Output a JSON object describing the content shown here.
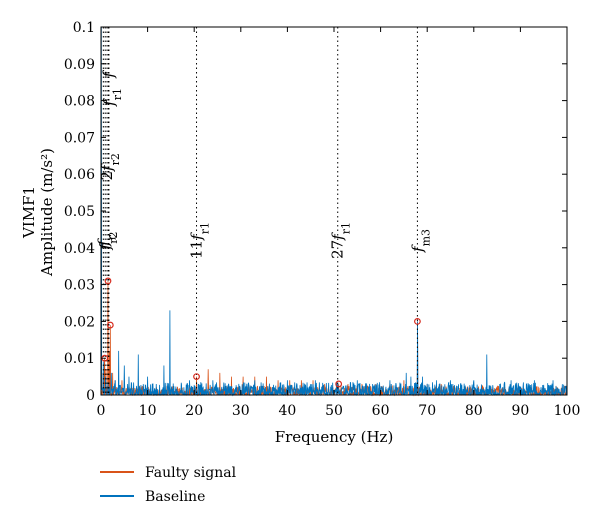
{
  "chart_data": {
    "type": "line",
    "title": "",
    "xlabel": "Frequency (Hz)",
    "ylabel_lines": [
      "VIMF1",
      "Amplitude (m/s²)"
    ],
    "xlim": [
      0,
      100
    ],
    "ylim": [
      0,
      0.1
    ],
    "xticks": [
      0,
      10,
      20,
      30,
      40,
      50,
      60,
      70,
      80,
      90,
      100
    ],
    "xtick_labels": [
      "0",
      "10",
      "20",
      "30",
      "40",
      "50",
      "60",
      "70",
      "80",
      "90",
      "100"
    ],
    "yticks": [
      0,
      0.01,
      0.02,
      0.03,
      0.04,
      0.05,
      0.06,
      0.07,
      0.08,
      0.09,
      0.1
    ],
    "ytick_labels": [
      "0",
      "0.01",
      "0.02",
      "0.03",
      "0.04",
      "0.05",
      "0.06",
      "0.07",
      "0.08",
      "0.09",
      "0.1"
    ],
    "grid": false,
    "legend_position": "below",
    "colors": {
      "faulty": "#d95319",
      "baseline": "#0072bd",
      "marker": "#d62b1f"
    },
    "series": [
      {
        "name": "Faulty signal",
        "key": "faulty",
        "peaks": [
          {
            "x": 0.4,
            "y": 0.006
          },
          {
            "x": 0.7,
            "y": 0.008
          },
          {
            "x": 0.8,
            "y": 0.01
          },
          {
            "x": 1.1,
            "y": 0.007
          },
          {
            "x": 1.5,
            "y": 0.031
          },
          {
            "x": 1.8,
            "y": 0.012
          },
          {
            "x": 2.0,
            "y": 0.019
          },
          {
            "x": 2.5,
            "y": 0.006
          },
          {
            "x": 3.0,
            "y": 0.004
          },
          {
            "x": 4.5,
            "y": 0.004
          },
          {
            "x": 20.5,
            "y": 0.005
          },
          {
            "x": 23.0,
            "y": 0.007
          },
          {
            "x": 25.5,
            "y": 0.006
          },
          {
            "x": 28.0,
            "y": 0.005
          },
          {
            "x": 30.5,
            "y": 0.005
          },
          {
            "x": 33.0,
            "y": 0.005
          },
          {
            "x": 35.5,
            "y": 0.005
          },
          {
            "x": 38.0,
            "y": 0.004
          },
          {
            "x": 40.5,
            "y": 0.004
          },
          {
            "x": 43.0,
            "y": 0.004
          },
          {
            "x": 45.5,
            "y": 0.004
          },
          {
            "x": 48.0,
            "y": 0.003
          },
          {
            "x": 51.0,
            "y": 0.003
          },
          {
            "x": 53.0,
            "y": 0.003
          },
          {
            "x": 56.0,
            "y": 0.003
          },
          {
            "x": 59.0,
            "y": 0.003
          },
          {
            "x": 62.0,
            "y": 0.003
          },
          {
            "x": 65.0,
            "y": 0.004
          },
          {
            "x": 67.9,
            "y": 0.02
          },
          {
            "x": 70.0,
            "y": 0.003
          },
          {
            "x": 73.0,
            "y": 0.003
          },
          {
            "x": 76.0,
            "y": 0.002
          },
          {
            "x": 79.0,
            "y": 0.002
          },
          {
            "x": 85.0,
            "y": 0.002
          },
          {
            "x": 90.0,
            "y": 0.002
          },
          {
            "x": 95.0,
            "y": 0.002
          },
          {
            "x": 99.0,
            "y": 0.002
          }
        ],
        "noise_level": 0.0025
      },
      {
        "name": "Baseline",
        "key": "baseline",
        "peaks": [
          {
            "x": 0.1,
            "y": 0.1
          },
          {
            "x": 0.5,
            "y": 0.009
          },
          {
            "x": 1.0,
            "y": 0.005
          },
          {
            "x": 2.2,
            "y": 0.006
          },
          {
            "x": 3.1,
            "y": 0.004
          },
          {
            "x": 3.8,
            "y": 0.012
          },
          {
            "x": 5.0,
            "y": 0.008
          },
          {
            "x": 6.0,
            "y": 0.005
          },
          {
            "x": 8.0,
            "y": 0.011
          },
          {
            "x": 10.0,
            "y": 0.005
          },
          {
            "x": 13.5,
            "y": 0.008
          },
          {
            "x": 14.8,
            "y": 0.023
          },
          {
            "x": 19.0,
            "y": 0.004
          },
          {
            "x": 24.0,
            "y": 0.004
          },
          {
            "x": 33.0,
            "y": 0.004
          },
          {
            "x": 40.0,
            "y": 0.004
          },
          {
            "x": 46.0,
            "y": 0.004
          },
          {
            "x": 55.0,
            "y": 0.004
          },
          {
            "x": 62.0,
            "y": 0.004
          },
          {
            "x": 65.5,
            "y": 0.006
          },
          {
            "x": 66.5,
            "y": 0.005
          },
          {
            "x": 67.9,
            "y": 0.02
          },
          {
            "x": 69.0,
            "y": 0.005
          },
          {
            "x": 72.0,
            "y": 0.004
          },
          {
            "x": 75.0,
            "y": 0.004
          },
          {
            "x": 80.0,
            "y": 0.004
          },
          {
            "x": 82.8,
            "y": 0.011
          },
          {
            "x": 88.0,
            "y": 0.004
          },
          {
            "x": 93.0,
            "y": 0.004
          },
          {
            "x": 97.0,
            "y": 0.004
          }
        ],
        "noise_level": 0.0035
      }
    ],
    "markers": [
      {
        "x": 0.8,
        "y": 0.01
      },
      {
        "x": 1.5,
        "y": 0.031
      },
      {
        "x": 2.0,
        "y": 0.019
      },
      {
        "x": 20.5,
        "y": 0.005
      },
      {
        "x": 51.0,
        "y": 0.003
      },
      {
        "x": 67.9,
        "y": 0.02
      }
    ],
    "annotations": [
      {
        "x": 0.5,
        "parts": [
          {
            "t": "f",
            "i": true
          },
          {
            "t": "r",
            "sub": true
          }
        ],
        "label_y": 0.042
      },
      {
        "x": 0.9,
        "parts": [
          {
            "t": "f",
            "i": true
          },
          {
            "t": "r2",
            "sub": true
          }
        ],
        "label_y": 0.042
      },
      {
        "x": 1.3,
        "parts": [
          {
            "t": "2"
          },
          {
            "t": "f",
            "i": true
          },
          {
            "t": "r2",
            "sub": true
          }
        ],
        "label_y": 0.062
      },
      {
        "x": 1.7,
        "parts": [
          {
            "t": "f",
            "i": true
          },
          {
            "t": "r1",
            "sub": true
          }
        ],
        "label_y": 0.081
      },
      {
        "x": 1.6,
        "parts": [
          {
            "t": "f",
            "i": true
          }
        ],
        "label_y": 0.087
      },
      {
        "x": 20.5,
        "parts": [
          {
            "t": "11"
          },
          {
            "t": "f",
            "i": true
          },
          {
            "t": "r1",
            "sub": true
          }
        ],
        "label_y": 0.042
      },
      {
        "x": 50.8,
        "parts": [
          {
            "t": "27"
          },
          {
            "t": "f",
            "i": true
          },
          {
            "t": "r1",
            "sub": true
          }
        ],
        "label_y": 0.042
      },
      {
        "x": 67.9,
        "parts": [
          {
            "t": "f",
            "i": true
          },
          {
            "t": "m3",
            "sub": true
          }
        ],
        "label_y": 0.042
      }
    ],
    "legend": [
      {
        "label": "Faulty signal",
        "key": "faulty"
      },
      {
        "label": "Baseline",
        "key": "baseline"
      }
    ]
  }
}
